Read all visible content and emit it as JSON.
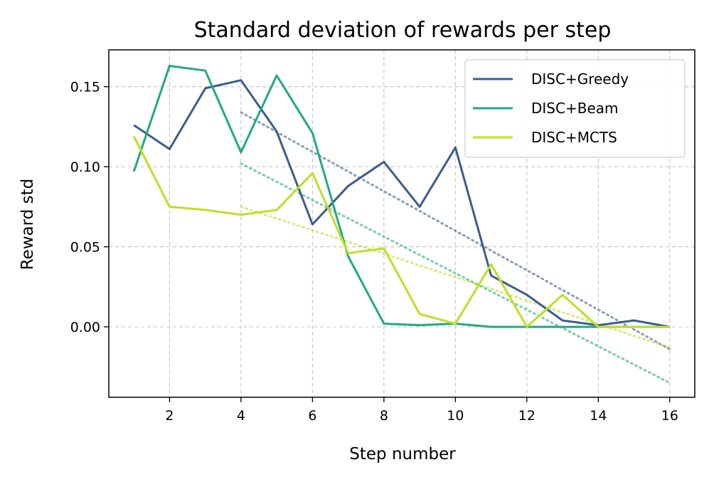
{
  "chart_data": {
    "type": "line",
    "title": "Standard deviation of rewards per step",
    "xlabel": "Step number",
    "ylabel": "Reward std",
    "xlim": [
      0.3,
      16.7
    ],
    "ylim": [
      -0.044,
      0.173
    ],
    "xticks": [
      2,
      4,
      6,
      8,
      10,
      12,
      14,
      16
    ],
    "yticks": [
      0.0,
      0.05,
      0.1,
      0.15
    ],
    "ytick_labels": [
      "0.00",
      "0.05",
      "0.10",
      "0.15"
    ],
    "grid": true,
    "legend_position": "top-right",
    "x": [
      1,
      2,
      3,
      4,
      5,
      6,
      7,
      8,
      9,
      10,
      11,
      12,
      13,
      14,
      15,
      16
    ],
    "series": [
      {
        "name": "DISC+Greedy",
        "color": "#3b5d8c",
        "values": [
          0.126,
          0.111,
          0.149,
          0.154,
          0.122,
          0.064,
          0.088,
          0.103,
          0.075,
          0.112,
          0.032,
          0.02,
          0.004,
          0.001,
          0.004,
          0.0
        ],
        "trend": {
          "x": [
            4,
            16
          ],
          "y": [
            0.134,
            -0.014
          ]
        }
      },
      {
        "name": "DISC+Beam",
        "color": "#22a884",
        "values": [
          0.097,
          0.163,
          0.16,
          0.109,
          0.157,
          0.121,
          0.044,
          0.002,
          0.001,
          0.002,
          0.0,
          0.0,
          0.0,
          0.0,
          0.0,
          0.0
        ],
        "trend": {
          "x": [
            4,
            16
          ],
          "y": [
            0.102,
            -0.035
          ]
        }
      },
      {
        "name": "DISC+MCTS",
        "color": "#bddf26",
        "values": [
          0.119,
          0.075,
          0.073,
          0.07,
          0.073,
          0.096,
          0.046,
          0.049,
          0.008,
          0.002,
          0.039,
          0.0,
          0.02,
          0.0,
          0.0,
          0.0
        ],
        "trend": {
          "x": [
            4,
            16
          ],
          "y": [
            0.075,
            -0.013
          ]
        }
      }
    ]
  }
}
